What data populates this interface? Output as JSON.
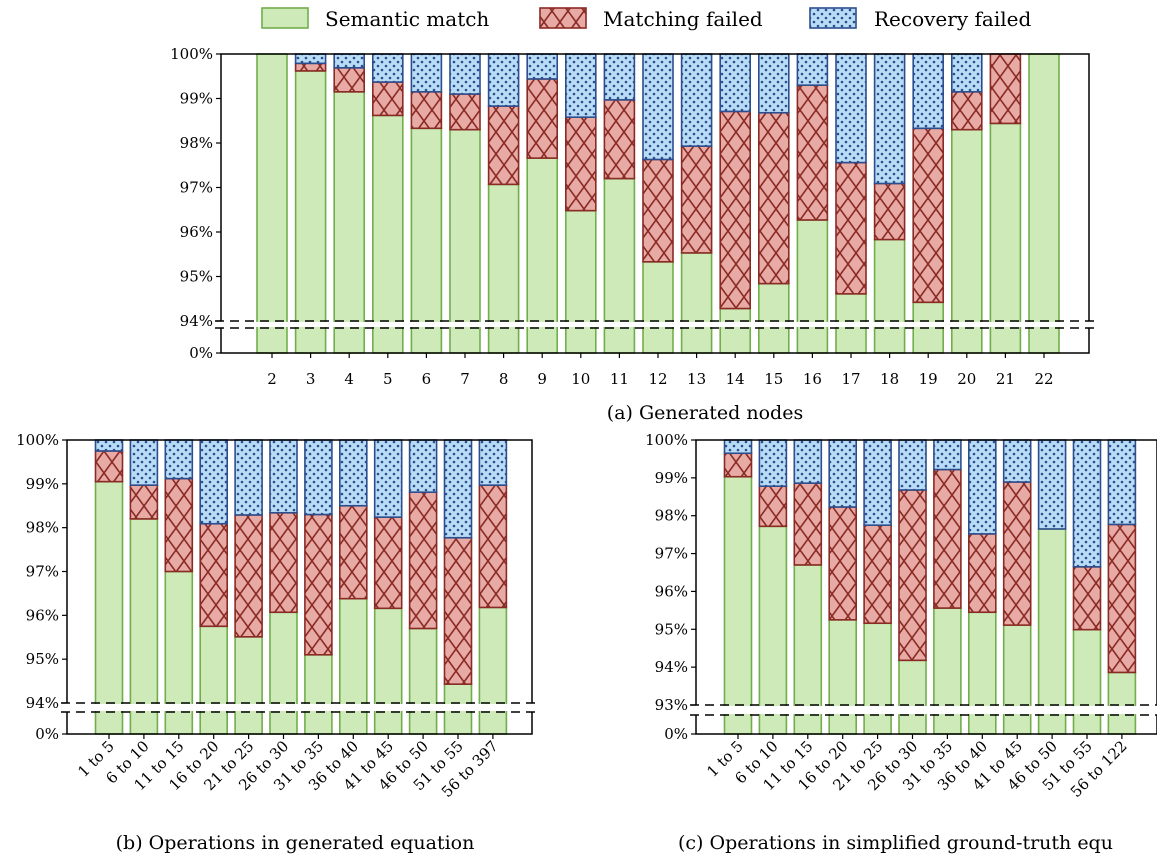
{
  "colors": {
    "semantic_fill": "#cdeab8",
    "semantic_stroke": "#72ad4c",
    "matching_fill": "#e8aaa5",
    "matching_stroke": "#8a2a24",
    "recovery_fill": "#b8dcf5",
    "recovery_stroke": "#2d4e8e"
  },
  "legend": {
    "items": [
      "Semantic match",
      "Matching failed",
      "Recovery failed"
    ]
  },
  "chart_data": [
    {
      "type": "bar",
      "stacked": true,
      "caption": "(a) Generated nodes",
      "categories": [
        "2",
        "3",
        "4",
        "5",
        "6",
        "7",
        "8",
        "9",
        "10",
        "11",
        "12",
        "13",
        "14",
        "15",
        "16",
        "17",
        "18",
        "19",
        "20",
        "21",
        "22"
      ],
      "series": [
        {
          "name": "Semantic match",
          "values": [
            100,
            99.62,
            99.15,
            98.62,
            98.33,
            98.3,
            97.07,
            97.66,
            96.48,
            97.2,
            95.33,
            95.53,
            94.28,
            94.84,
            96.27,
            94.61,
            95.83,
            94.42,
            98.3,
            98.44,
            100
          ]
        },
        {
          "name": "Matching failed",
          "values": [
            0,
            0.17,
            0.54,
            0.75,
            0.82,
            0.8,
            1.76,
            1.78,
            2.1,
            1.77,
            2.3,
            2.4,
            4.43,
            3.84,
            3.03,
            2.95,
            1.26,
            3.91,
            0.85,
            1.56,
            0
          ]
        },
        {
          "name": "Recovery failed",
          "values": [
            0,
            0.21,
            0.31,
            0.63,
            0.85,
            0.9,
            1.17,
            0.56,
            1.42,
            1.03,
            2.37,
            2.07,
            1.29,
            1.32,
            0.7,
            2.44,
            2.91,
            1.67,
            0.85,
            0,
            0
          ]
        }
      ],
      "y_ticks": [
        "0%",
        "94%",
        "95%",
        "96%",
        "97%",
        "98%",
        "99%",
        "100%"
      ],
      "ylim": [
        94,
        100
      ],
      "axis_break": true
    },
    {
      "type": "bar",
      "stacked": true,
      "caption": "(b) Operations in generated equation",
      "categories": [
        "1 to 5",
        "6 to 10",
        "11 to 15",
        "16 to 20",
        "21 to 25",
        "26 to 30",
        "31 to 35",
        "36 to 40",
        "41 to 45",
        "46 to 50",
        "51 to 55",
        "56 to 397"
      ],
      "series": [
        {
          "name": "Semantic match",
          "values": [
            99.05,
            98.2,
            97.0,
            95.75,
            95.51,
            96.07,
            95.1,
            96.38,
            96.16,
            95.7,
            94.43,
            96.18
          ]
        },
        {
          "name": "Matching failed",
          "values": [
            0.7,
            0.77,
            2.12,
            2.34,
            2.78,
            2.27,
            3.2,
            2.12,
            2.08,
            3.11,
            3.34,
            2.79
          ]
        },
        {
          "name": "Recovery failed",
          "values": [
            0.25,
            1.03,
            0.88,
            1.91,
            1.71,
            1.66,
            1.7,
            1.5,
            1.76,
            1.19,
            2.23,
            1.03
          ]
        }
      ],
      "y_ticks": [
        "0%",
        "94%",
        "95%",
        "96%",
        "97%",
        "98%",
        "99%",
        "100%"
      ],
      "ylim": [
        94,
        100
      ],
      "axis_break": true
    },
    {
      "type": "bar",
      "stacked": true,
      "caption": "(c) Operations in simplified ground-truth equ",
      "categories": [
        "1 to 5",
        "6 to 10",
        "11 to 15",
        "16 to 20",
        "21 to 25",
        "26 to 30",
        "31 to 35",
        "36 to 40",
        "41 to 45",
        "46 to 50",
        "51 to 55",
        "56 to 122"
      ],
      "series": [
        {
          "name": "Semantic match",
          "values": [
            99.03,
            97.72,
            96.7,
            95.25,
            95.16,
            94.18,
            95.56,
            95.45,
            95.11,
            97.65,
            94.99,
            93.86
          ]
        },
        {
          "name": "Matching failed",
          "values": [
            0.62,
            1.06,
            2.16,
            2.98,
            2.59,
            4.5,
            3.66,
            2.07,
            3.78,
            0,
            1.66,
            3.91
          ]
        },
        {
          "name": "Recovery failed",
          "values": [
            0.35,
            1.22,
            1.14,
            1.77,
            2.25,
            1.32,
            0.78,
            2.48,
            1.11,
            2.35,
            3.35,
            2.23
          ]
        }
      ],
      "y_ticks": [
        "0%",
        "93%",
        "94%",
        "95%",
        "96%",
        "97%",
        "98%",
        "99%",
        "100%"
      ],
      "ylim": [
        93,
        100
      ],
      "axis_break": true
    }
  ]
}
